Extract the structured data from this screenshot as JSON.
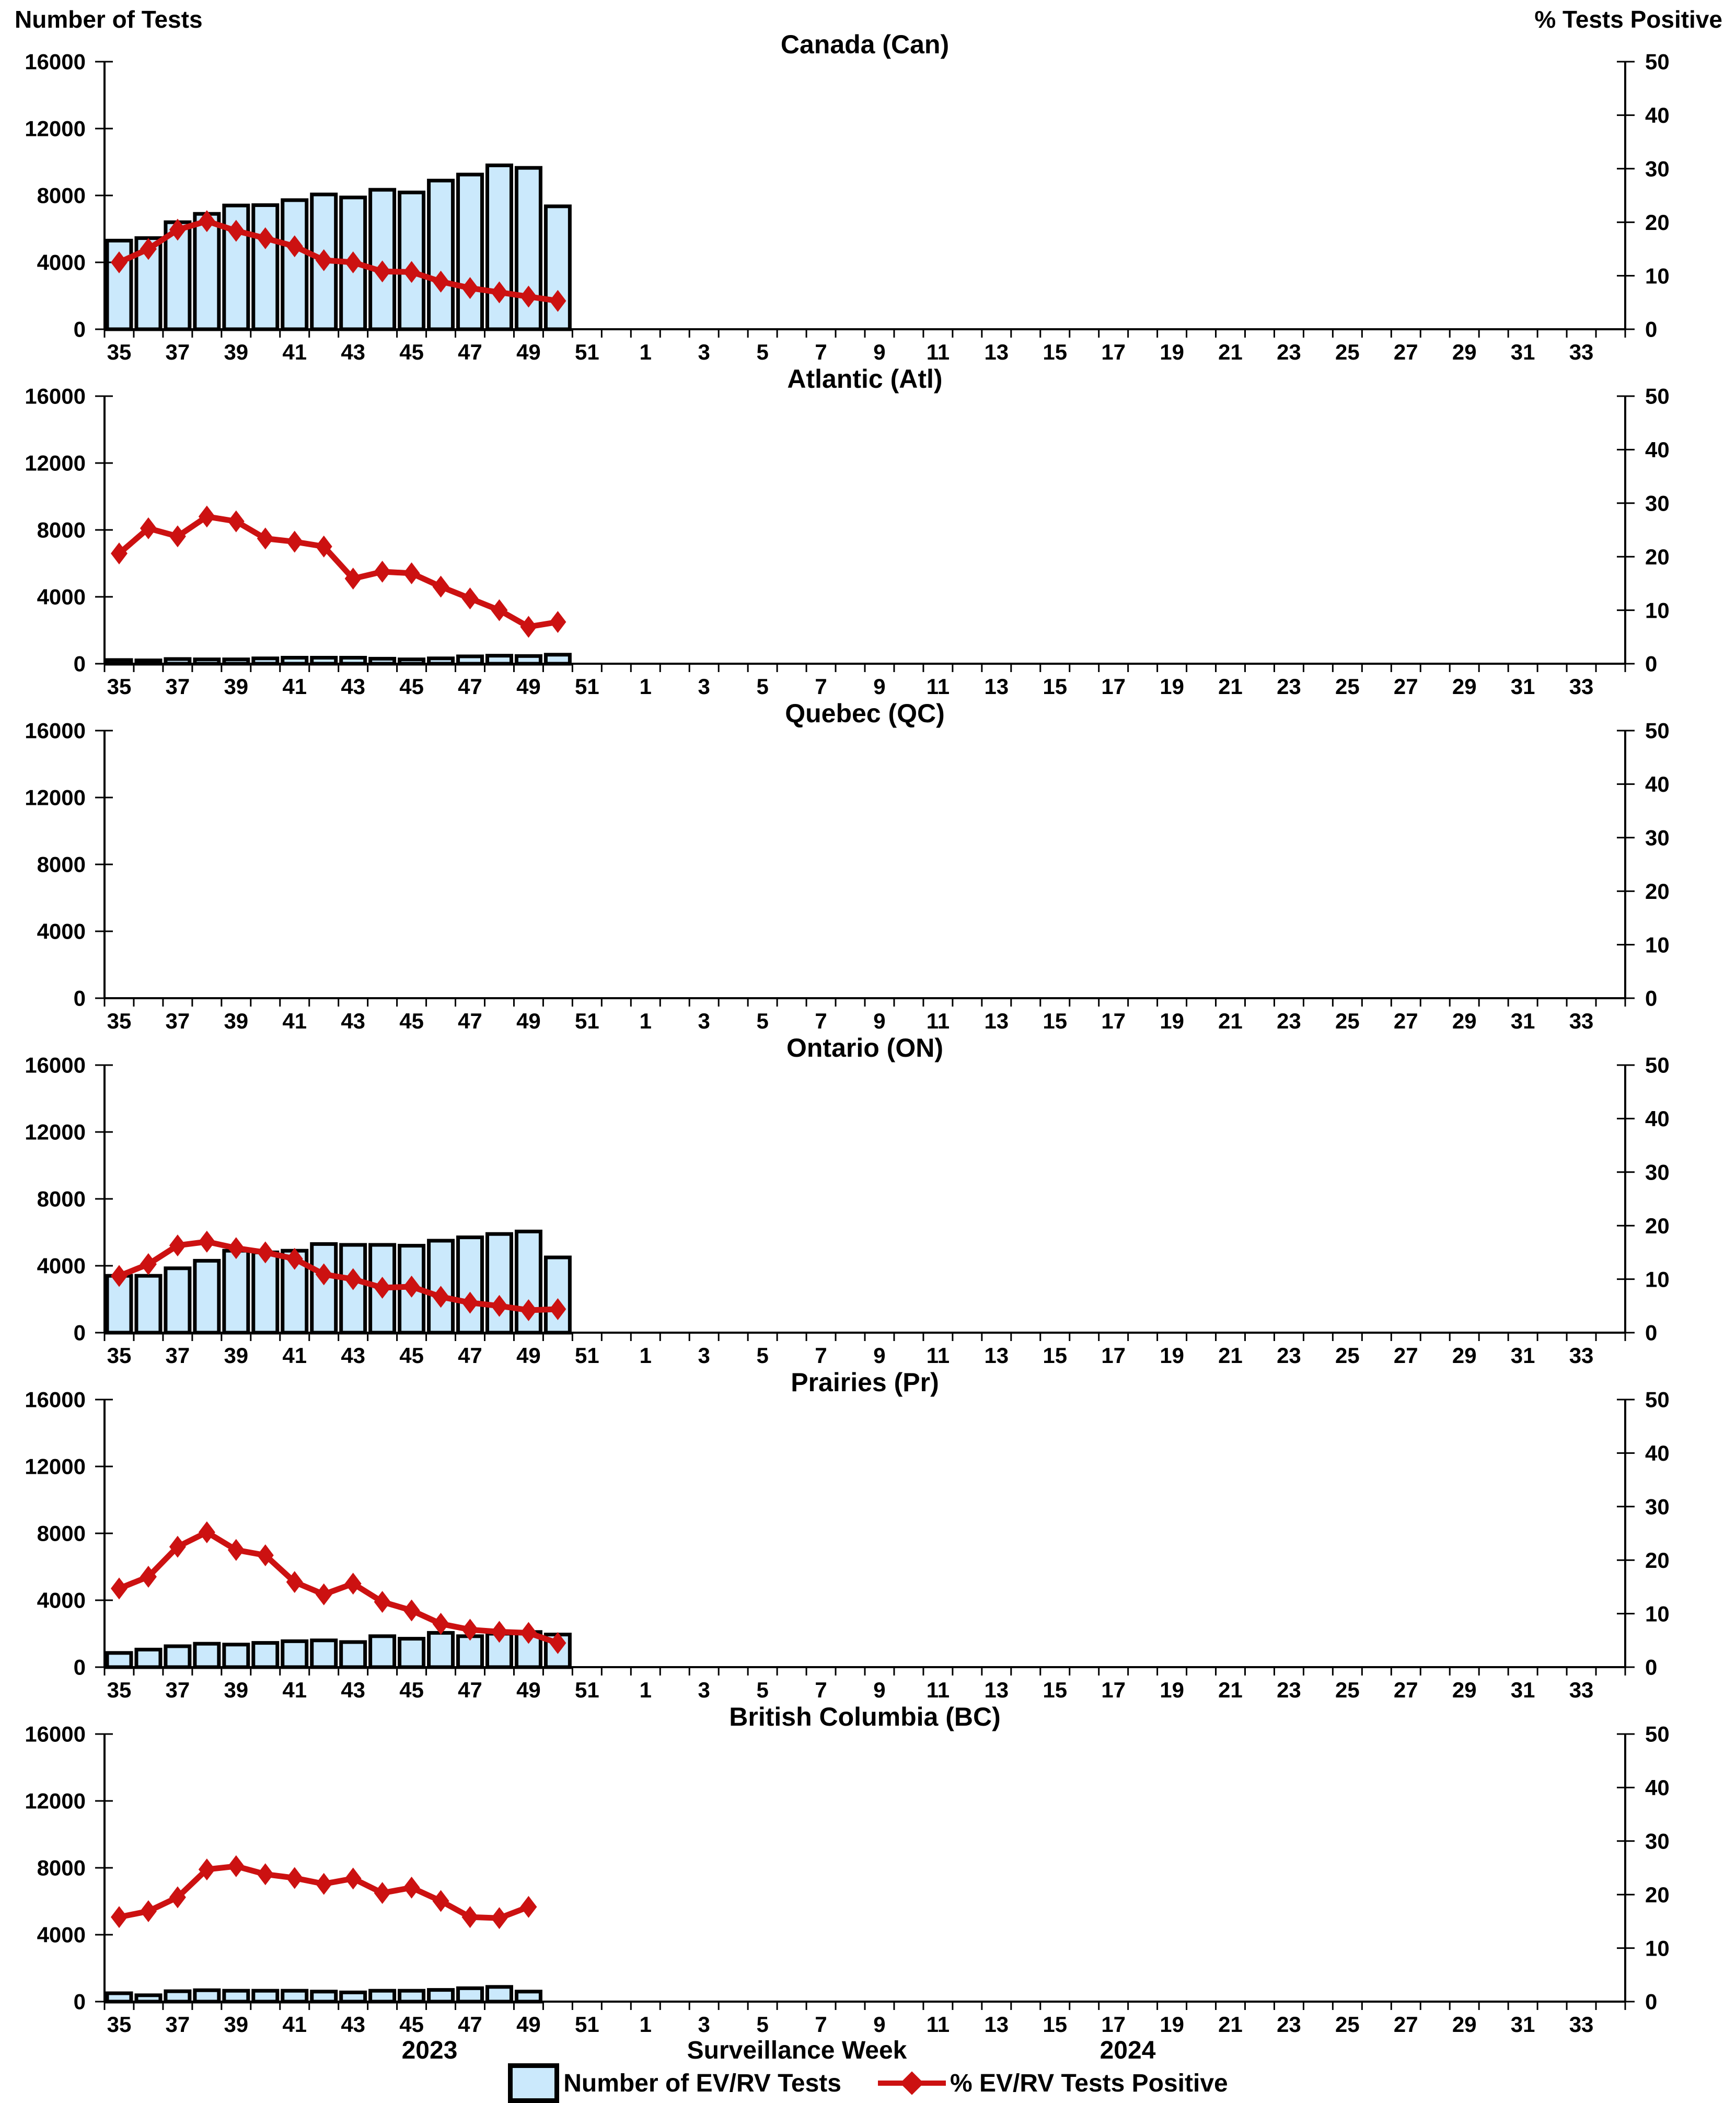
{
  "header": {
    "left_axis_title": "Number of Tests",
    "right_axis_title": "% Tests Positive"
  },
  "footer": {
    "year_left": "2023",
    "x_axis_label": "Surveillance Week",
    "year_right": "2024"
  },
  "legend": {
    "items": [
      {
        "label": "Number of EV/RV Tests",
        "marker": "bar-swatch"
      },
      {
        "label": "% EV/RV Tests Positive",
        "marker": "line-diamond-marker"
      }
    ]
  },
  "colors": {
    "bar_fill": "#CBE9FC",
    "bar_stroke": "#000000",
    "line_color": "#CC1111"
  },
  "axes": {
    "left_ticks": [
      0,
      4000,
      8000,
      12000,
      16000
    ],
    "right_ticks": [
      0,
      10,
      20,
      30,
      40,
      50
    ],
    "x_tick_labels": [
      35,
      37,
      39,
      41,
      43,
      45,
      47,
      49,
      51,
      1,
      3,
      5,
      7,
      9,
      11,
      13,
      15,
      17,
      19,
      21,
      23,
      25,
      27,
      29,
      31,
      33
    ],
    "ylim_left": [
      0,
      16000
    ],
    "ylim_right": [
      0,
      50
    ],
    "x_weeks_year1": "35-52 of 2023",
    "x_weeks_year2": "1-34 of 2024",
    "grid": "off",
    "legend_position": "bottom"
  },
  "chart_data": [
    {
      "type": "bar+line",
      "id": "can",
      "region": "Canada (Can)",
      "weeks": [
        35,
        36,
        37,
        38,
        39,
        40,
        41,
        42,
        43,
        44,
        45,
        46,
        47,
        48,
        49,
        50
      ],
      "num_tests": [
        5300,
        5450,
        6400,
        6900,
        7400,
        7420,
        7720,
        8060,
        7880,
        8340,
        8180,
        8890,
        9250,
        9800,
        9650,
        7350
      ],
      "pct_positive": [
        12.5,
        15.0,
        18.6,
        20.2,
        18.4,
        17.0,
        15.5,
        12.9,
        12.5,
        10.8,
        10.7,
        8.9,
        7.7,
        6.9,
        6.1,
        5.3
      ]
    },
    {
      "type": "bar+line",
      "id": "atl",
      "region": "Atlantic (Atl)",
      "weeks": [
        35,
        36,
        37,
        38,
        39,
        40,
        41,
        42,
        43,
        44,
        45,
        46,
        47,
        48,
        49,
        50
      ],
      "num_tests": [
        220,
        200,
        280,
        260,
        260,
        320,
        360,
        360,
        360,
        300,
        260,
        320,
        440,
        480,
        460,
        540
      ],
      "pct_positive": [
        20.6,
        25.3,
        23.8,
        27.5,
        26.6,
        23.4,
        22.8,
        21.9,
        15.9,
        17.2,
        16.9,
        14.4,
        12.2,
        10.0,
        6.9,
        7.8
      ]
    },
    {
      "type": "bar+line",
      "id": "qc",
      "region": "Quebec (QC)",
      "weeks": [],
      "num_tests": [],
      "pct_positive": []
    },
    {
      "type": "bar+line",
      "id": "on",
      "region": "Ontario (ON)",
      "weeks": [
        35,
        36,
        37,
        38,
        39,
        40,
        41,
        42,
        43,
        44,
        45,
        46,
        47,
        48,
        49,
        50
      ],
      "num_tests": [
        3400,
        3400,
        3850,
        4300,
        4900,
        4800,
        4900,
        5300,
        5250,
        5250,
        5200,
        5500,
        5700,
        5900,
        6050,
        4500
      ],
      "pct_positive": [
        10.6,
        12.8,
        16.3,
        17.0,
        15.8,
        15.0,
        13.8,
        10.9,
        10.0,
        8.4,
        8.6,
        6.7,
        5.6,
        5.0,
        4.2,
        4.4
      ]
    },
    {
      "type": "bar+line",
      "id": "pr",
      "region": "Prairies (Pr)",
      "weeks": [
        35,
        36,
        37,
        38,
        39,
        40,
        41,
        42,
        43,
        44,
        45,
        46,
        47,
        48,
        49,
        50
      ],
      "num_tests": [
        850,
        1050,
        1250,
        1400,
        1350,
        1450,
        1550,
        1600,
        1500,
        1850,
        1700,
        2050,
        1850,
        2000,
        2100,
        1950
      ],
      "pct_positive": [
        14.7,
        16.9,
        22.5,
        25.2,
        21.9,
        20.9,
        15.9,
        13.6,
        15.6,
        12.2,
        10.6,
        8.1,
        7.0,
        6.6,
        6.4,
        4.5
      ]
    },
    {
      "type": "bar+line",
      "id": "bc",
      "region": "British Columbia (BC)",
      "weeks": [
        35,
        36,
        37,
        38,
        39,
        40,
        41,
        42,
        43,
        44,
        45,
        46,
        47,
        48,
        49
      ],
      "num_tests": [
        500,
        380,
        620,
        680,
        650,
        650,
        650,
        600,
        550,
        650,
        650,
        700,
        800,
        880,
        600
      ],
      "pct_positive": [
        15.8,
        16.9,
        19.5,
        24.7,
        25.3,
        23.8,
        23.1,
        22.0,
        23.0,
        20.3,
        21.3,
        18.8,
        15.8,
        15.6,
        17.7
      ]
    }
  ]
}
